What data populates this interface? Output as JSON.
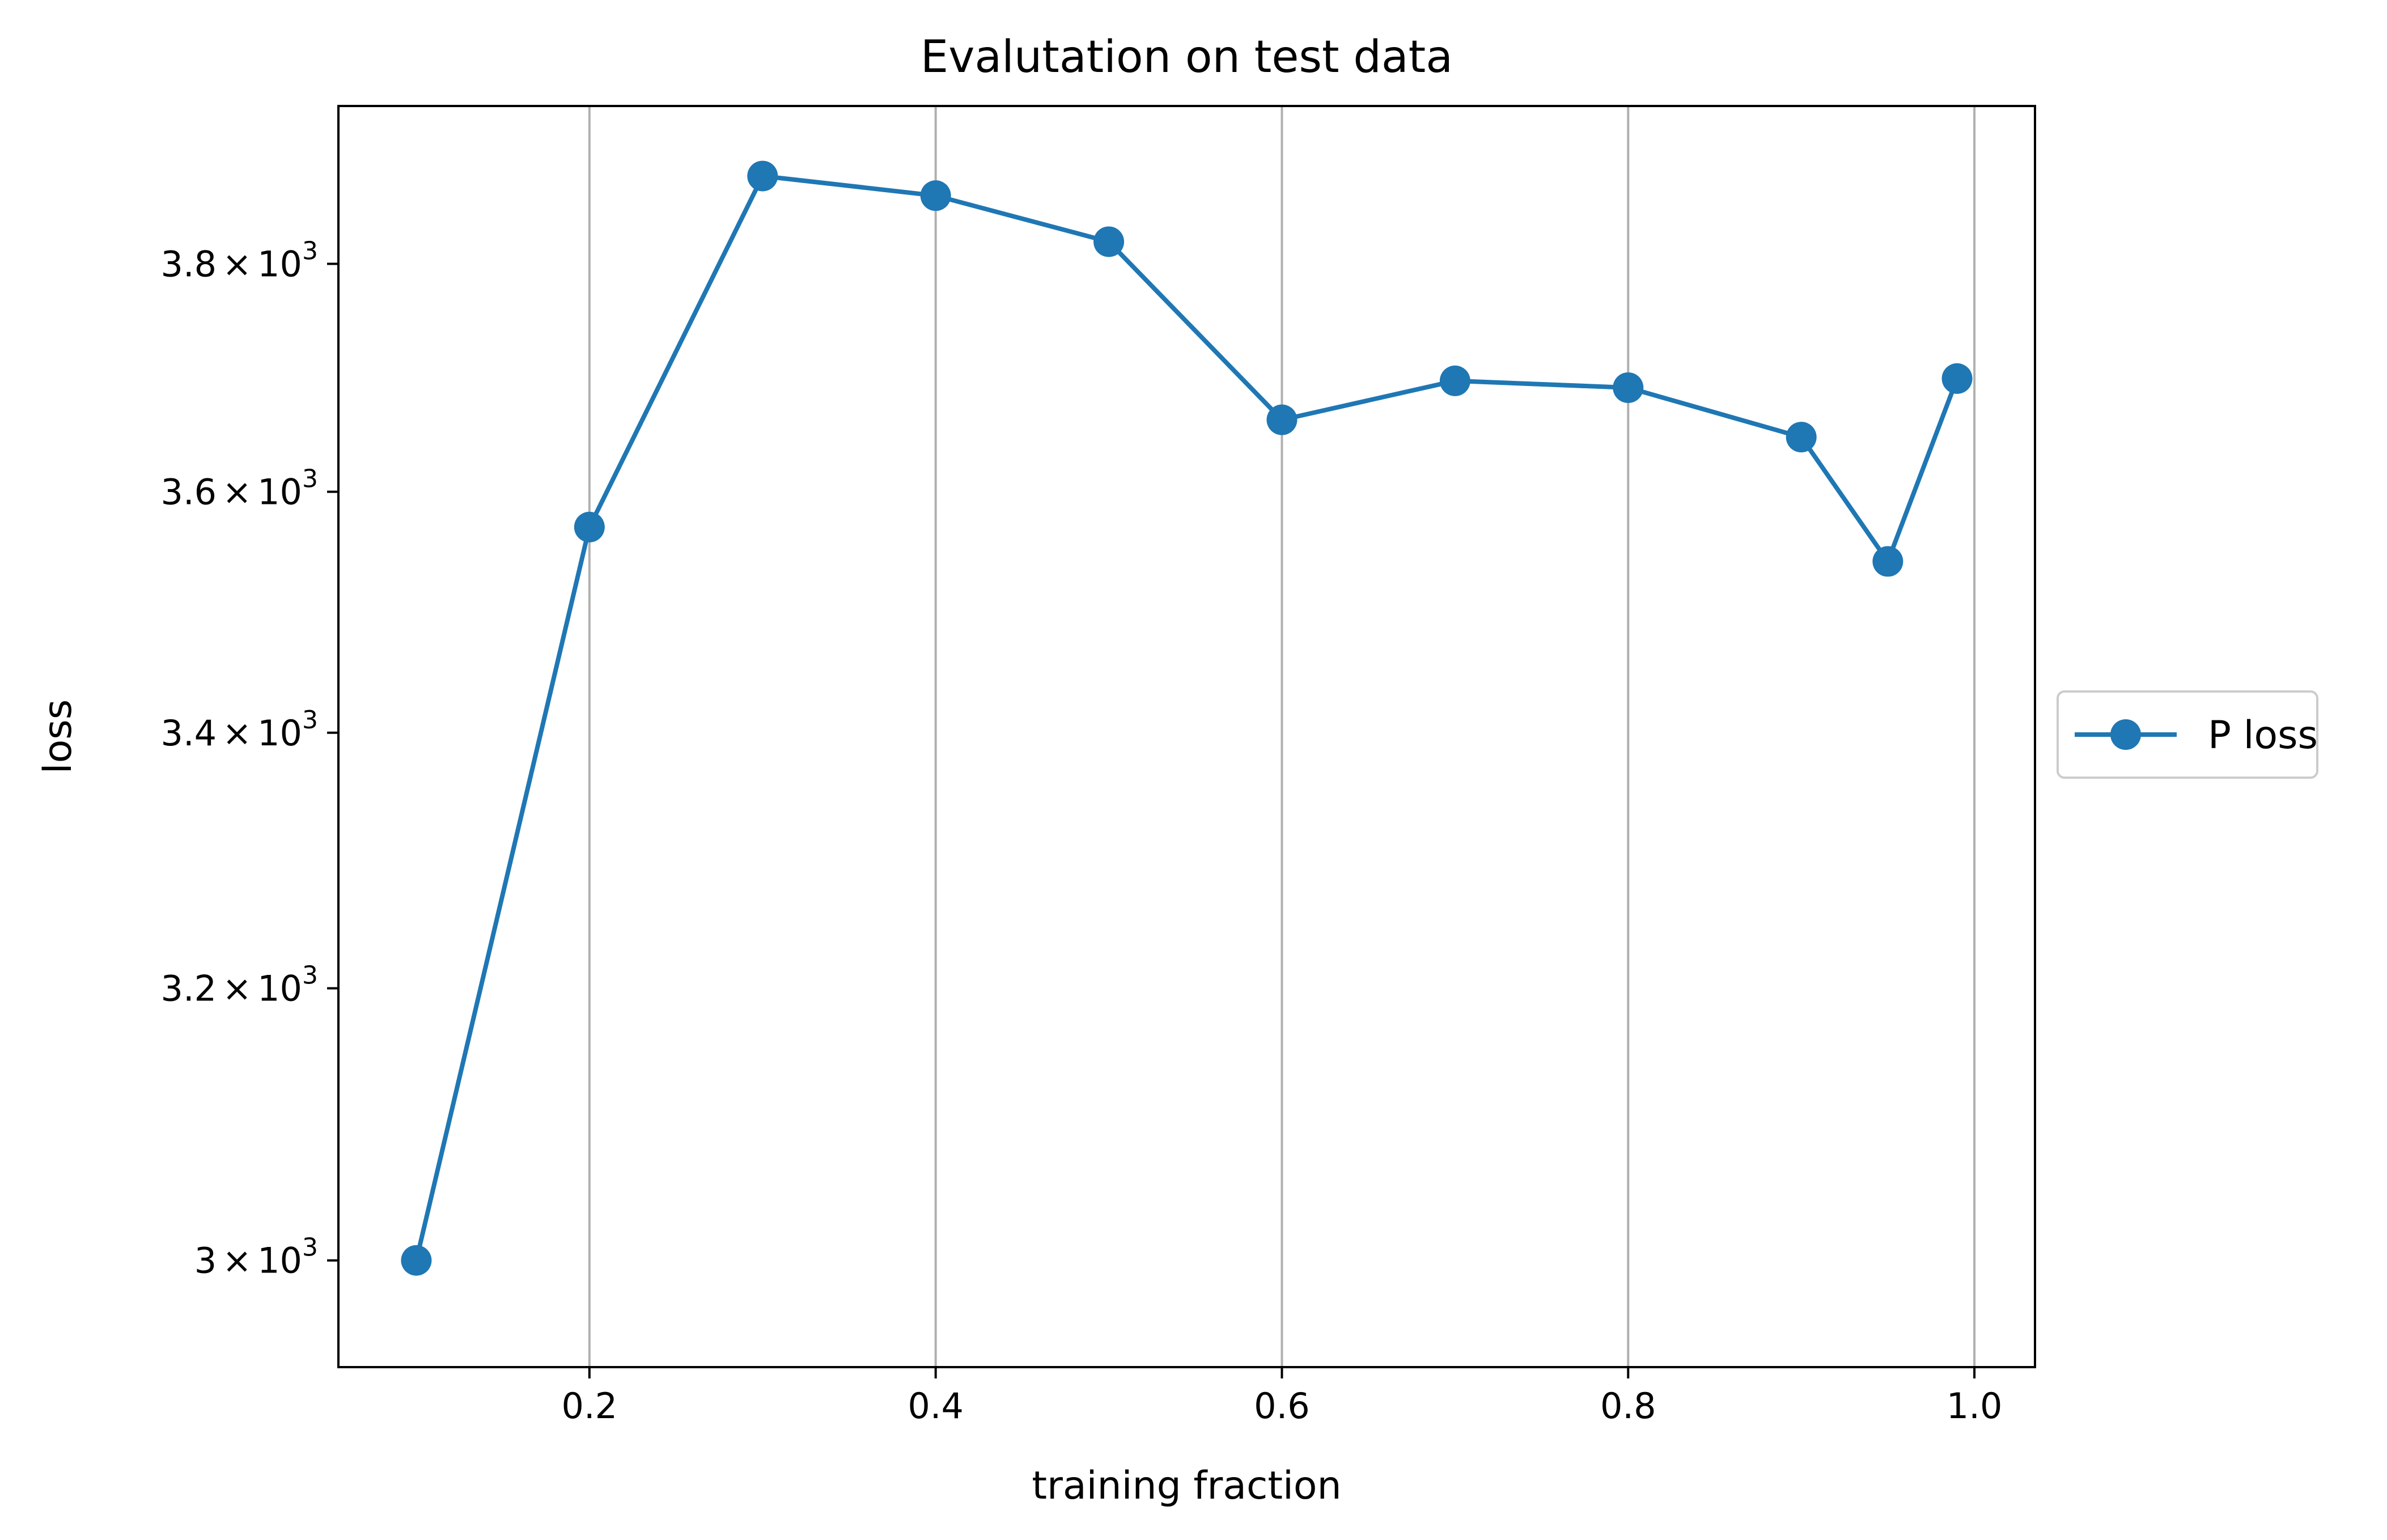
{
  "chart_data": {
    "type": "line",
    "title": "Evalutation on test data",
    "xlabel": "training fraction",
    "ylabel": "loss",
    "xlim": [
      0.055,
      1.035
    ],
    "ylim": [
      2925,
      3945
    ],
    "yscale": "log",
    "grid": "x-only",
    "legend_position": "center-right-outside",
    "x_ticks": [
      {
        "value": 0.2,
        "label": "0.2"
      },
      {
        "value": 0.4,
        "label": "0.4"
      },
      {
        "value": 0.6,
        "label": "0.6"
      },
      {
        "value": 0.8,
        "label": "0.8"
      },
      {
        "value": 1.0,
        "label": "1.0"
      }
    ],
    "y_ticks": [
      {
        "value": 3000,
        "mantissa": "3",
        "times": "×",
        "base": "10",
        "exponent": "3"
      },
      {
        "value": 3200,
        "mantissa": "3.2",
        "times": "×",
        "base": "10",
        "exponent": "3"
      },
      {
        "value": 3400,
        "mantissa": "3.4",
        "times": "×",
        "base": "10",
        "exponent": "3"
      },
      {
        "value": 3600,
        "mantissa": "3.6",
        "times": "×",
        "base": "10",
        "exponent": "3"
      },
      {
        "value": 3800,
        "mantissa": "3.8",
        "times": "×",
        "base": "10",
        "exponent": "3"
      }
    ],
    "series": [
      {
        "name": "P loss",
        "color": "#1f77b4",
        "marker": "circle",
        "x": [
          0.1,
          0.2,
          0.3,
          0.4,
          0.5,
          0.6,
          0.7,
          0.8,
          0.9,
          0.95,
          0.99
        ],
        "y": [
          3000,
          3570,
          3880,
          3862,
          3820,
          3662,
          3696,
          3690,
          3647,
          3541,
          3698
        ]
      }
    ]
  }
}
